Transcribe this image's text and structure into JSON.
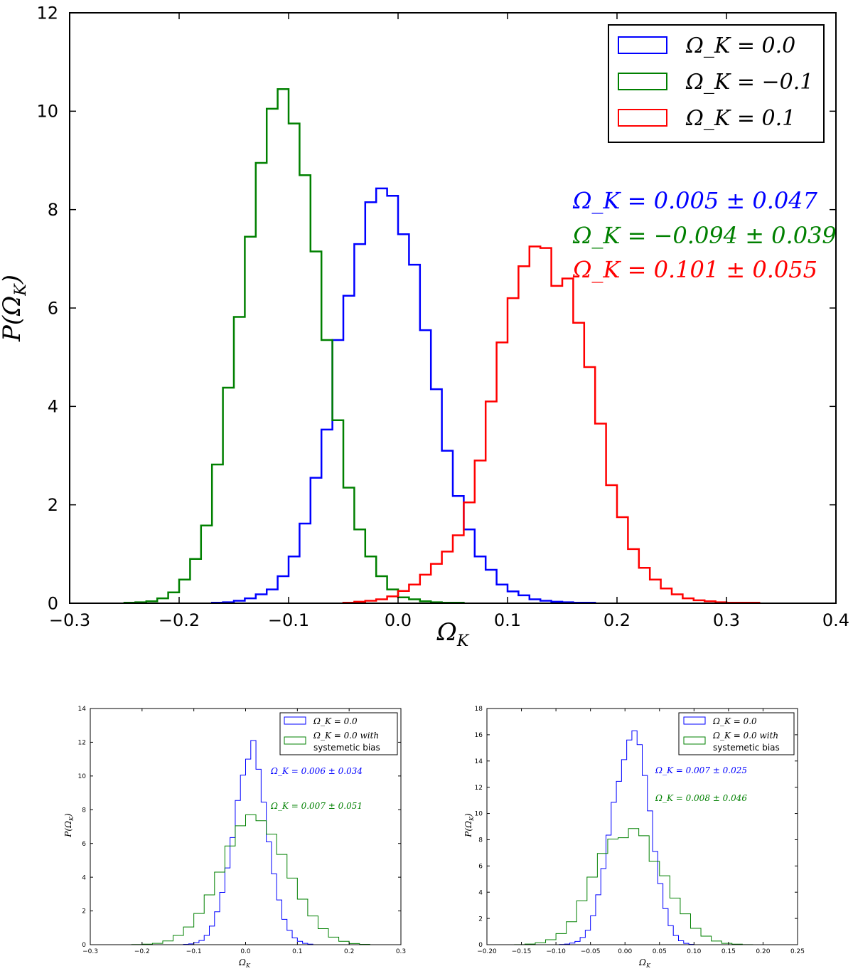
{
  "chart_data": [
    {
      "type": "histogram",
      "id": "main",
      "xlabel": "Ω_K",
      "ylabel": "P(Ω_K)",
      "xlim": [
        -0.3,
        0.4
      ],
      "ylim": [
        0,
        12
      ],
      "xticks": [
        -0.3,
        -0.2,
        -0.1,
        0.0,
        0.1,
        0.2,
        0.3,
        0.4
      ],
      "xtick_labels": [
        "−0.3",
        "−0.2",
        "−0.1",
        "0.0",
        "0.1",
        "0.2",
        "0.3",
        "0.4"
      ],
      "yticks": [
        0,
        2,
        4,
        6,
        8,
        10,
        12
      ],
      "ytick_labels": [
        "0",
        "2",
        "4",
        "6",
        "8",
        "10",
        "12"
      ],
      "legend_position": "top-right",
      "series": [
        {
          "name": "Ω_K = 0.0",
          "color": "#0000ff",
          "edges": [
            -0.17,
            -0.16,
            -0.15,
            -0.14,
            -0.13,
            -0.12,
            -0.11,
            -0.1,
            -0.09,
            -0.08,
            -0.07,
            -0.06,
            -0.05,
            -0.04,
            -0.03,
            -0.02,
            -0.01,
            0.0,
            0.01,
            0.02,
            0.03,
            0.04,
            0.05,
            0.06,
            0.07,
            0.08,
            0.09,
            0.1,
            0.11,
            0.12,
            0.13,
            0.14,
            0.15,
            0.16,
            0.17,
            0.18
          ],
          "values": [
            0.01,
            0.02,
            0.05,
            0.1,
            0.18,
            0.28,
            0.55,
            0.95,
            1.62,
            2.55,
            3.53,
            5.35,
            6.25,
            7.3,
            8.15,
            8.43,
            8.28,
            7.5,
            6.88,
            5.55,
            4.35,
            3.1,
            2.18,
            1.5,
            0.95,
            0.68,
            0.38,
            0.24,
            0.16,
            0.08,
            0.05,
            0.03,
            0.02,
            0.01,
            0.01
          ]
        },
        {
          "name": "Ω_K = −0.1",
          "color": "#008000",
          "edges": [
            -0.25,
            -0.24,
            -0.23,
            -0.22,
            -0.21,
            -0.2,
            -0.19,
            -0.18,
            -0.17,
            -0.16,
            -0.15,
            -0.14,
            -0.13,
            -0.12,
            -0.11,
            -0.1,
            -0.09,
            -0.08,
            -0.07,
            -0.06,
            -0.05,
            -0.04,
            -0.03,
            -0.02,
            -0.01,
            0.0,
            0.01,
            0.02,
            0.03,
            0.04,
            0.05,
            0.06
          ],
          "values": [
            0.01,
            0.02,
            0.04,
            0.1,
            0.22,
            0.48,
            0.9,
            1.58,
            2.82,
            4.38,
            5.82,
            7.45,
            8.95,
            10.05,
            10.45,
            9.75,
            8.7,
            7.15,
            5.35,
            3.72,
            2.35,
            1.5,
            0.95,
            0.55,
            0.28,
            0.12,
            0.08,
            0.04,
            0.02,
            0.01,
            0.01
          ]
        },
        {
          "name": "Ω_K = 0.1",
          "color": "#ff0000",
          "edges": [
            -0.05,
            -0.04,
            -0.03,
            -0.02,
            -0.01,
            0.0,
            0.01,
            0.02,
            0.03,
            0.04,
            0.05,
            0.06,
            0.07,
            0.08,
            0.09,
            0.1,
            0.11,
            0.12,
            0.13,
            0.14,
            0.15,
            0.16,
            0.17,
            0.18,
            0.19,
            0.2,
            0.21,
            0.22,
            0.23,
            0.24,
            0.25,
            0.26,
            0.27,
            0.28,
            0.29,
            0.3,
            0.31,
            0.32,
            0.33
          ],
          "values": [
            0.01,
            0.03,
            0.05,
            0.08,
            0.14,
            0.25,
            0.38,
            0.58,
            0.8,
            1.05,
            1.38,
            2.05,
            2.9,
            4.1,
            5.3,
            6.2,
            6.85,
            7.25,
            7.22,
            6.45,
            6.6,
            5.7,
            4.8,
            3.65,
            2.4,
            1.75,
            1.1,
            0.72,
            0.48,
            0.3,
            0.18,
            0.1,
            0.06,
            0.04,
            0.02,
            0.01,
            0.01,
            0.01
          ]
        }
      ],
      "annotations": [
        {
          "text": "Ω_K = 0.005 ± 0.047",
          "color": "#0000ff"
        },
        {
          "text": "Ω_K = −0.094 ± 0.039",
          "color": "#008000"
        },
        {
          "text": "Ω_K = 0.101 ± 0.055",
          "color": "#ff0000"
        }
      ]
    },
    {
      "type": "histogram",
      "id": "bottom-left",
      "xlabel": "Ω_K",
      "ylabel": "P(Ω_K)",
      "xlim": [
        -0.3,
        0.3
      ],
      "ylim": [
        0,
        14
      ],
      "xticks": [
        -0.3,
        -0.2,
        -0.1,
        0.0,
        0.1,
        0.2,
        0.3
      ],
      "xtick_labels": [
        "−0.3",
        "−0.2",
        "−0.1",
        "0.0",
        "0.1",
        "0.2",
        "0.3"
      ],
      "yticks": [
        0,
        2,
        4,
        6,
        8,
        10,
        12,
        14
      ],
      "ytick_labels": [
        "0",
        "2",
        "4",
        "6",
        "8",
        "10",
        "12",
        "14"
      ],
      "legend_position": "top-right",
      "series": [
        {
          "name": "Ω_K = 0.0",
          "color": "#0000ff",
          "edges": [
            -0.12,
            -0.11,
            -0.1,
            -0.09,
            -0.08,
            -0.07,
            -0.06,
            -0.05,
            -0.04,
            -0.03,
            -0.02,
            -0.01,
            0.0,
            0.01,
            0.02,
            0.03,
            0.04,
            0.05,
            0.06,
            0.07,
            0.08,
            0.09,
            0.1,
            0.11,
            0.12,
            0.13
          ],
          "values": [
            0.02,
            0.05,
            0.12,
            0.25,
            0.55,
            1.1,
            1.95,
            3.1,
            4.55,
            6.35,
            8.55,
            10.05,
            11.0,
            12.1,
            10.4,
            8.45,
            6.1,
            4.2,
            2.65,
            1.5,
            0.85,
            0.4,
            0.2,
            0.08,
            0.03
          ]
        },
        {
          "name": "Ω_K = 0.0 with systemetic bias",
          "color": "#008000",
          "edges": [
            -0.22,
            -0.2,
            -0.18,
            -0.16,
            -0.14,
            -0.12,
            -0.1,
            -0.08,
            -0.06,
            -0.04,
            -0.02,
            0.0,
            0.02,
            0.04,
            0.06,
            0.08,
            0.1,
            0.12,
            0.14,
            0.16,
            0.18,
            0.2,
            0.22,
            0.24
          ],
          "values": [
            0.01,
            0.03,
            0.08,
            0.22,
            0.55,
            1.05,
            1.85,
            2.95,
            4.3,
            5.85,
            7.05,
            7.7,
            7.35,
            6.55,
            5.35,
            3.95,
            2.7,
            1.7,
            0.95,
            0.45,
            0.2,
            0.07,
            0.02
          ]
        }
      ],
      "legend": [
        "Ω_K = 0.0",
        "Ω_K = 0.0 with",
        "systemetic bias"
      ],
      "annotations": [
        {
          "text": "Ω_K = 0.006 ± 0.034",
          "color": "#0000ff"
        },
        {
          "text": "Ω_K = 0.007 ± 0.051",
          "color": "#008000"
        }
      ]
    },
    {
      "type": "histogram",
      "id": "bottom-right",
      "xlabel": "Ω_K",
      "ylabel": "P(Ω_K)",
      "xlim": [
        -0.2,
        0.25
      ],
      "ylim": [
        0,
        18
      ],
      "xticks": [
        -0.2,
        -0.15,
        -0.1,
        -0.05,
        0.0,
        0.05,
        0.1,
        0.15,
        0.2,
        0.25
      ],
      "xtick_labels": [
        "−0.20",
        "−0.15",
        "−0.10",
        "−0.05",
        "0.00",
        "0.05",
        "0.10",
        "0.15",
        "0.20",
        "0.25"
      ],
      "yticks": [
        0,
        2,
        4,
        6,
        8,
        10,
        12,
        14,
        16,
        18
      ],
      "ytick_labels": [
        "0",
        "2",
        "4",
        "6",
        "8",
        "10",
        "12",
        "14",
        "16",
        "18"
      ],
      "legend_position": "top-right",
      "series": [
        {
          "name": "Ω_K = 0.0",
          "color": "#0000ff",
          "edges": [
            -0.095,
            -0.0875,
            -0.08,
            -0.0725,
            -0.065,
            -0.0575,
            -0.05,
            -0.0425,
            -0.035,
            -0.0275,
            -0.02,
            -0.0125,
            -0.005,
            0.0025,
            0.01,
            0.0175,
            0.025,
            0.0325,
            0.04,
            0.0475,
            0.055,
            0.0625,
            0.07,
            0.0775,
            0.085,
            0.0925,
            0.1
          ],
          "values": [
            0.02,
            0.05,
            0.12,
            0.25,
            0.55,
            1.1,
            2.2,
            3.8,
            5.8,
            8.35,
            10.85,
            12.45,
            14.1,
            15.6,
            16.3,
            15.25,
            12.9,
            10.2,
            7.1,
            4.65,
            2.75,
            1.45,
            0.7,
            0.3,
            0.1,
            0.03
          ]
        },
        {
          "name": "Ω_K = 0.0 with systemetic bias",
          "color": "#008000",
          "edges": [
            -0.16,
            -0.145,
            -0.13,
            -0.115,
            -0.1,
            -0.085,
            -0.07,
            -0.055,
            -0.04,
            -0.025,
            -0.01,
            0.005,
            0.02,
            0.035,
            0.05,
            0.065,
            0.08,
            0.095,
            0.11,
            0.125,
            0.14,
            0.155,
            0.17,
            0.185
          ],
          "values": [
            0.01,
            0.05,
            0.15,
            0.38,
            0.85,
            1.75,
            3.35,
            5.15,
            6.95,
            8.05,
            8.15,
            8.85,
            8.3,
            6.35,
            5.25,
            3.55,
            2.35,
            1.25,
            0.65,
            0.28,
            0.1,
            0.04,
            0.01
          ]
        }
      ],
      "legend": [
        "Ω_K = 0.0",
        "Ω_K = 0.0 with",
        "systemetic bias"
      ],
      "annotations": [
        {
          "text": "Ω_K = 0.007 ± 0.025",
          "color": "#0000ff"
        },
        {
          "text": "Ω_K = 0.008 ± 0.046",
          "color": "#008000"
        }
      ]
    }
  ]
}
